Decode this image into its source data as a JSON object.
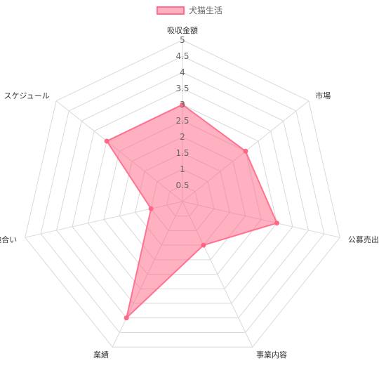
{
  "chart_data": {
    "type": "radar",
    "categories": [
      "吸収金額",
      "市場",
      "公募売出比",
      "事業内容",
      "業績",
      "地合い",
      "スケジュール"
    ],
    "series": [
      {
        "name": "犬猫生活",
        "values": [
          3,
          2.5,
          3,
          1.5,
          4,
          1,
          3
        ]
      }
    ],
    "rlim": [
      0,
      5
    ],
    "tick_labels": [
      "0.5",
      "1",
      "1.5",
      "2",
      "2.5",
      "3",
      "3.5",
      "4",
      "4.5",
      "5"
    ],
    "legend_position": "top",
    "grid": true,
    "colors": {
      "fill": "#ff6384",
      "grid": "#d9d9d9",
      "text": "#666666"
    }
  }
}
